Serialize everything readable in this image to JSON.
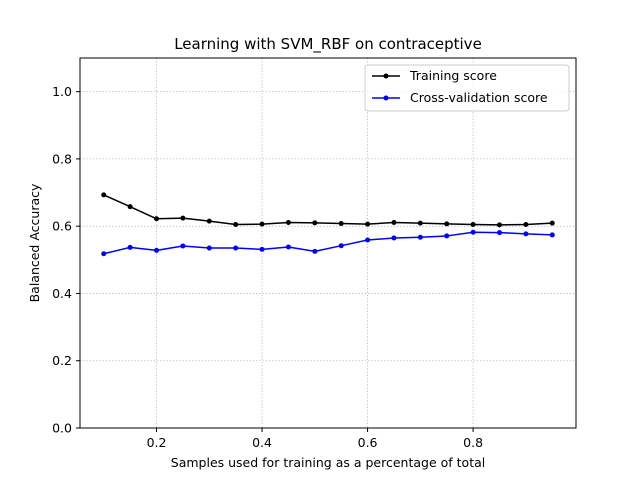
{
  "chart_data": {
    "type": "line",
    "title": "Learning with SVM_RBF on contraceptive",
    "xlabel": "Samples used for training as a percentage of total",
    "ylabel": "Balanced Accuracy",
    "xlim": [
      0.055,
      0.995
    ],
    "ylim": [
      0.0,
      1.1
    ],
    "xticks": [
      0.2,
      0.4,
      0.6,
      0.8
    ],
    "xtick_labels": [
      "0.2",
      "0.4",
      "0.6",
      "0.8"
    ],
    "yticks": [
      0.0,
      0.2,
      0.4,
      0.6,
      0.8,
      1.0
    ],
    "ytick_labels": [
      "0.0",
      "0.2",
      "0.4",
      "0.6",
      "0.8",
      "1.0"
    ],
    "grid": true,
    "legend_position": "top-right",
    "x": [
      0.1,
      0.15,
      0.2,
      0.25,
      0.3,
      0.35,
      0.4,
      0.45,
      0.5,
      0.55,
      0.6,
      0.65,
      0.7,
      0.75,
      0.8,
      0.85,
      0.9,
      0.95
    ],
    "series": [
      {
        "name": "Training score",
        "color": "#000000",
        "values": [
          0.693,
          0.658,
          0.622,
          0.624,
          0.615,
          0.605,
          0.606,
          0.611,
          0.61,
          0.608,
          0.606,
          0.611,
          0.609,
          0.607,
          0.605,
          0.604,
          0.605,
          0.609
        ]
      },
      {
        "name": "Cross-validation score",
        "color": "#0000ff",
        "values": [
          0.518,
          0.537,
          0.528,
          0.541,
          0.535,
          0.535,
          0.531,
          0.538,
          0.525,
          0.542,
          0.559,
          0.565,
          0.567,
          0.571,
          0.582,
          0.581,
          0.577,
          0.574
        ]
      }
    ]
  }
}
